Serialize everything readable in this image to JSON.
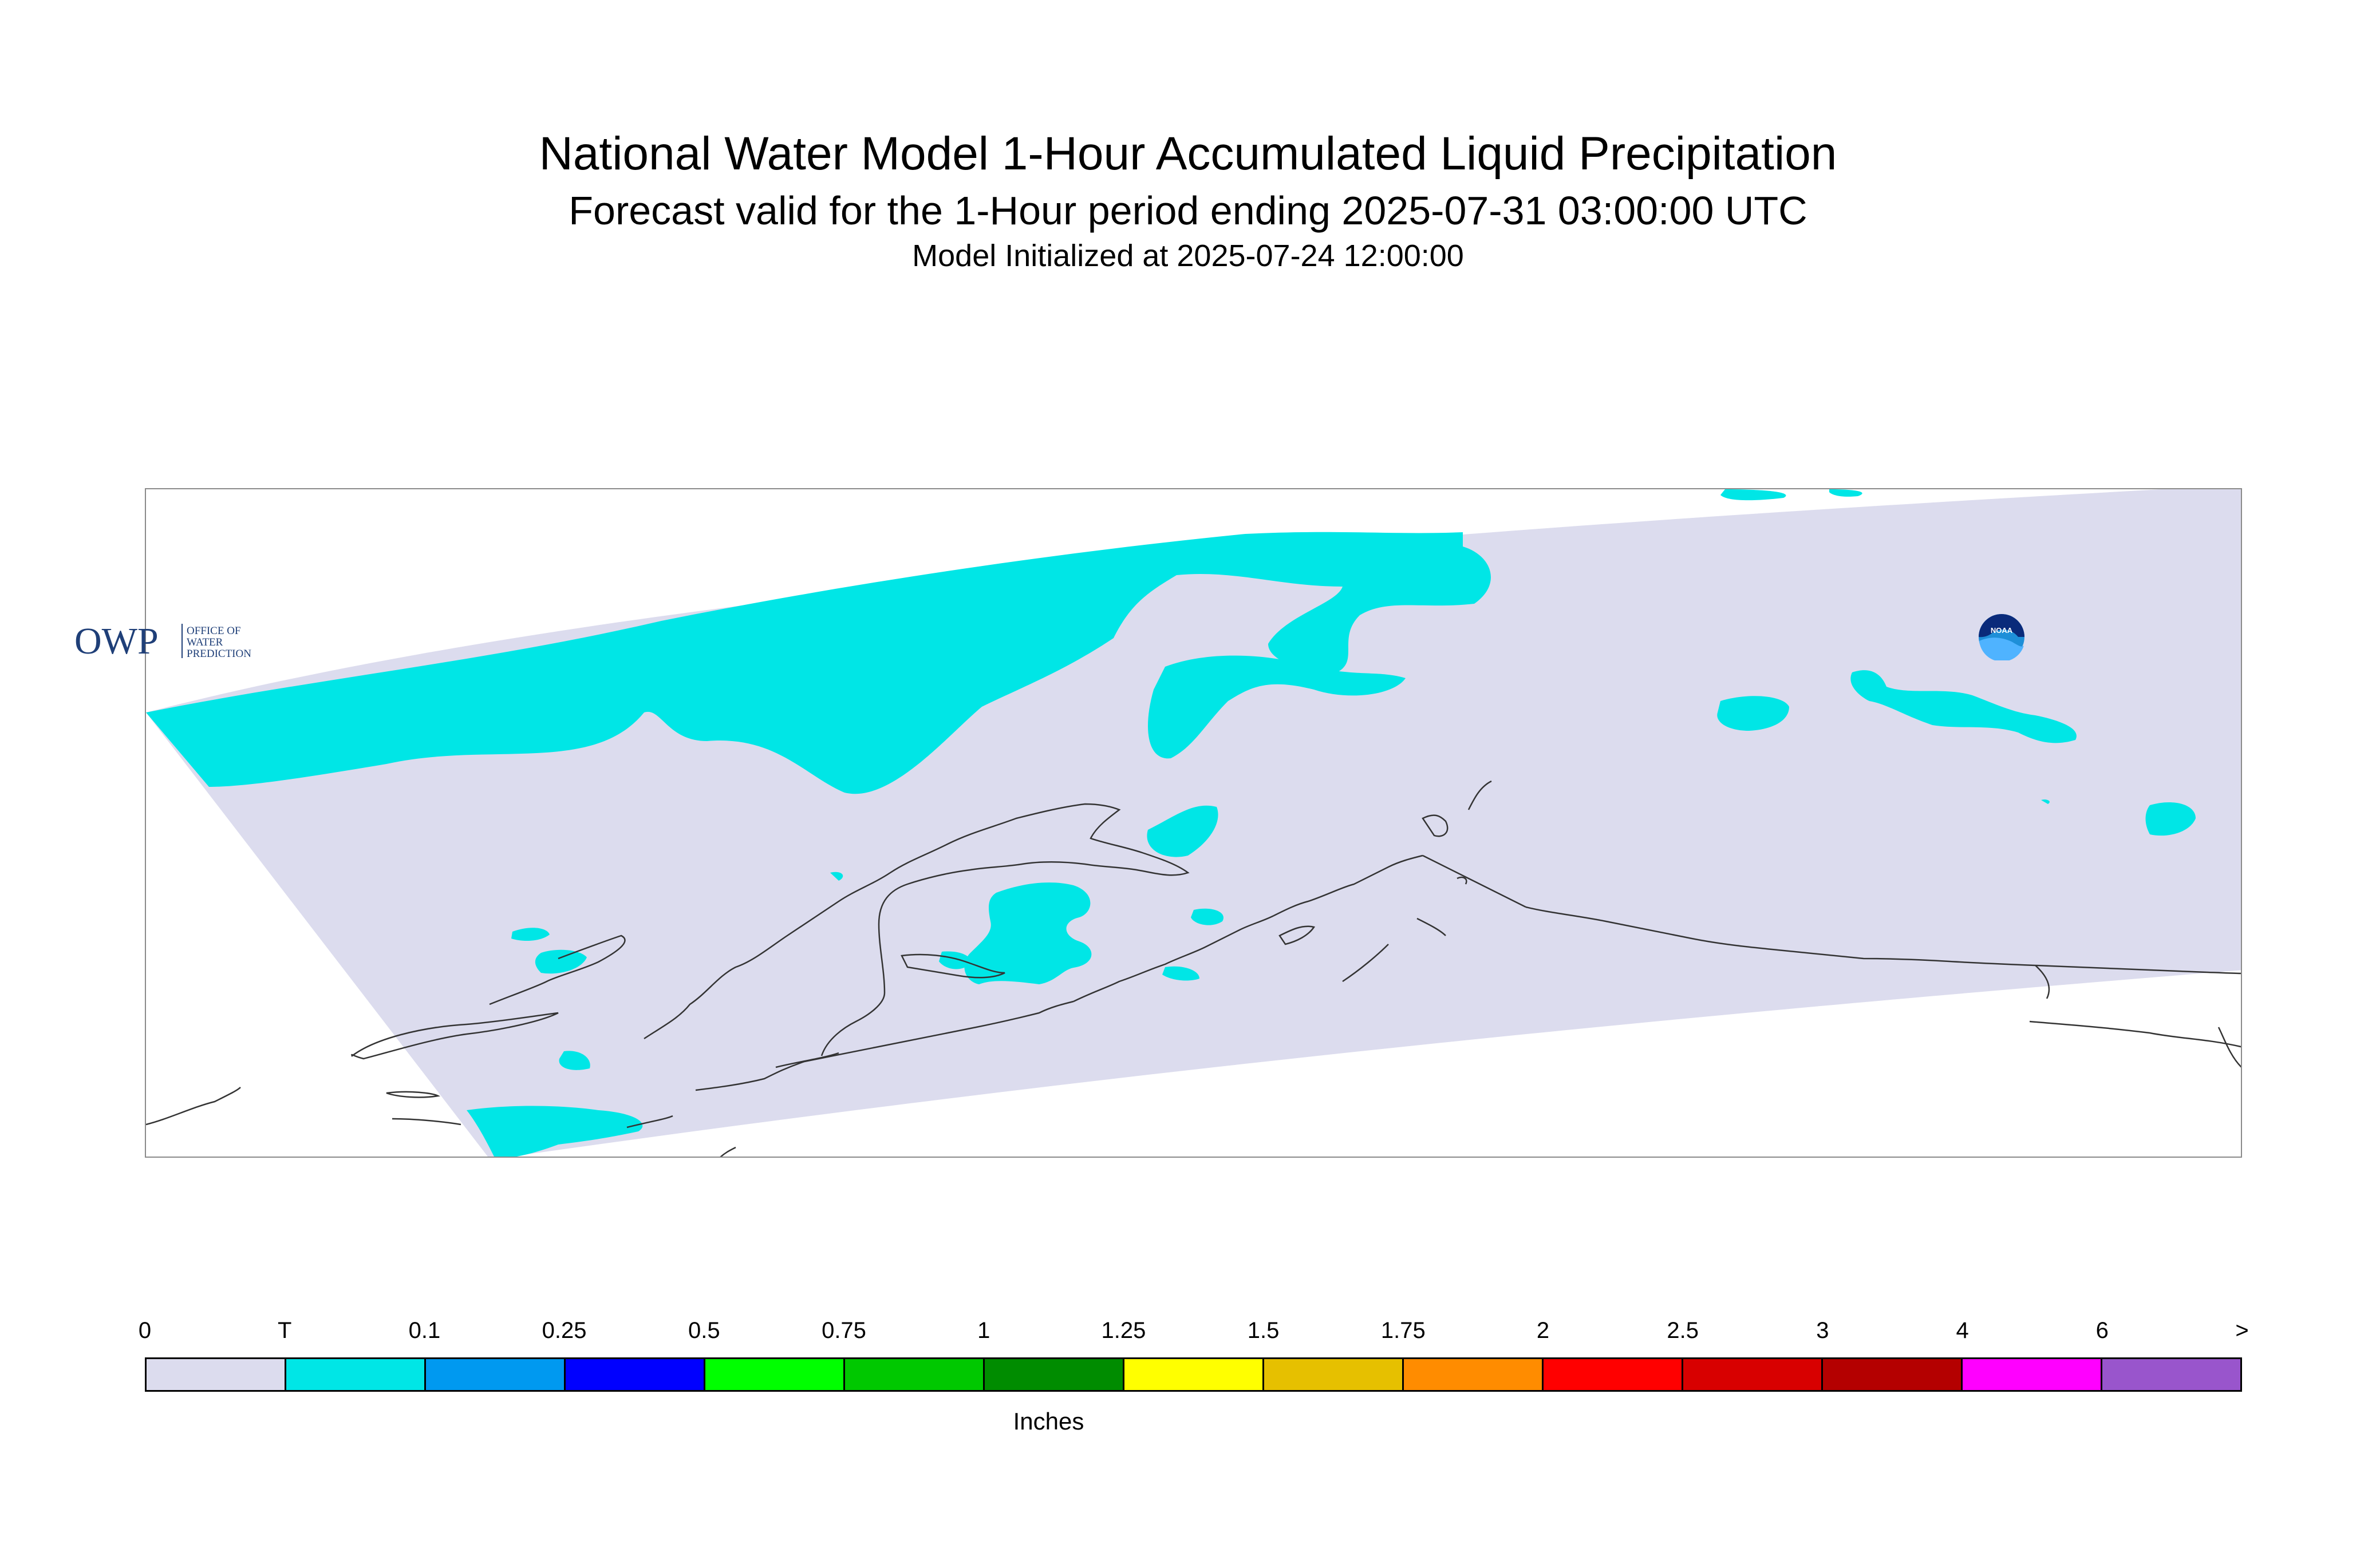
{
  "header": {
    "title": "National Water Model 1-Hour Accumulated Liquid Precipitation",
    "subtitle": "Forecast valid for the 1-Hour period ending 2025-07-31 03:00:00 UTC",
    "init": "Model Initialized at 2025-07-24 12:00:00"
  },
  "map": {
    "region": "Alaska",
    "domain_color": "#dcdcee",
    "precip_color": "#00e6e6",
    "coast_color": "#333333",
    "logos": {
      "owp_letters": "OWP",
      "owp_line1": "OFFICE OF",
      "owp_line2": "WATER",
      "owp_line3": "PREDICTION",
      "noaa_text": "NOAA"
    }
  },
  "legend": {
    "ticks": [
      "0",
      "T",
      "0.1",
      "0.25",
      "0.5",
      "0.75",
      "1",
      "1.25",
      "1.5",
      "1.75",
      "2",
      "2.5",
      "3",
      "4",
      "6",
      ">"
    ],
    "colors": [
      "#dcdcee",
      "#00e6e6",
      "#0099f0",
      "#0000ff",
      "#00ff00",
      "#00c800",
      "#008c00",
      "#ffff00",
      "#e6c000",
      "#ff8c00",
      "#ff0000",
      "#d80000",
      "#b40000",
      "#ff00ff",
      "#9955cc"
    ],
    "units": "Inches"
  }
}
